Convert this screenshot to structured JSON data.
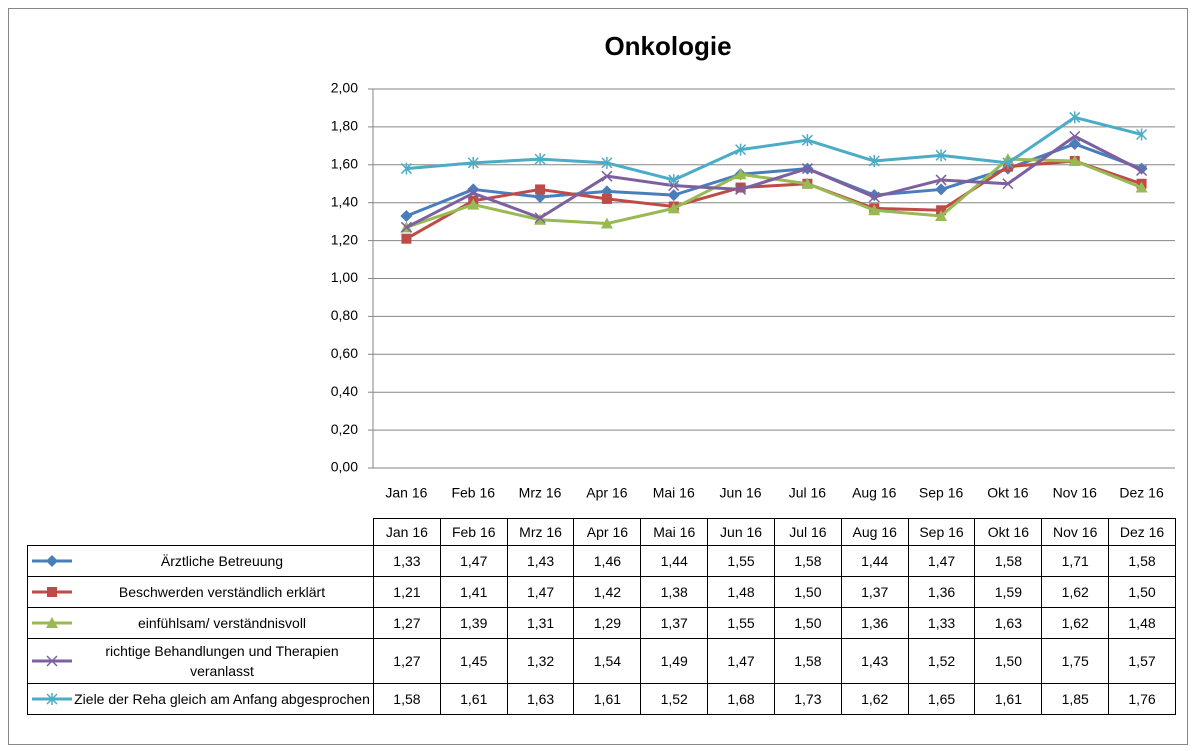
{
  "chart_data": {
    "type": "line",
    "title": "Onkologie",
    "categories": [
      "Jan 16",
      "Feb 16",
      "Mrz 16",
      "Apr 16",
      "Mai 16",
      "Jun 16",
      "Jul 16",
      "Aug 16",
      "Sep 16",
      "Okt 16",
      "Nov 16",
      "Dez 16"
    ],
    "ylim": [
      0,
      2
    ],
    "yticks": [
      {
        "value": 0,
        "label": "0,00"
      },
      {
        "value": 0.2,
        "label": "0,20"
      },
      {
        "value": 0.4,
        "label": "0,40"
      },
      {
        "value": 0.6,
        "label": "0,60"
      },
      {
        "value": 0.8,
        "label": "0,80"
      },
      {
        "value": 1,
        "label": "1,00"
      },
      {
        "value": 1.2,
        "label": "1,20"
      },
      {
        "value": 1.4,
        "label": "1,40"
      },
      {
        "value": 1.6,
        "label": "1,60"
      },
      {
        "value": 1.8,
        "label": "1,80"
      },
      {
        "value": 2,
        "label": "2,00"
      }
    ],
    "grid": true,
    "series": [
      {
        "name": "Ärztliche Betreuung",
        "color": "#4a7ebb",
        "marker": "diamond",
        "values": [
          1.33,
          1.47,
          1.43,
          1.46,
          1.44,
          1.55,
          1.58,
          1.44,
          1.47,
          1.58,
          1.71,
          1.58
        ],
        "value_labels": [
          "1,33",
          "1,47",
          "1,43",
          "1,46",
          "1,44",
          "1,55",
          "1,58",
          "1,44",
          "1,47",
          "1,58",
          "1,71",
          "1,58"
        ]
      },
      {
        "name": "Beschwerden verständlich erklärt",
        "color": "#be4b48",
        "marker": "square",
        "values": [
          1.21,
          1.41,
          1.47,
          1.42,
          1.38,
          1.48,
          1.5,
          1.37,
          1.36,
          1.59,
          1.62,
          1.5
        ],
        "value_labels": [
          "1,21",
          "1,41",
          "1,47",
          "1,42",
          "1,38",
          "1,48",
          "1,50",
          "1,37",
          "1,36",
          "1,59",
          "1,62",
          "1,50"
        ]
      },
      {
        "name": "einfühlsam/ verständnisvoll",
        "color": "#98b954",
        "marker": "triangle",
        "values": [
          1.27,
          1.39,
          1.31,
          1.29,
          1.37,
          1.55,
          1.5,
          1.36,
          1.33,
          1.63,
          1.62,
          1.48
        ],
        "value_labels": [
          "1,27",
          "1,39",
          "1,31",
          "1,29",
          "1,37",
          "1,55",
          "1,50",
          "1,36",
          "1,33",
          "1,63",
          "1,62",
          "1,48"
        ]
      },
      {
        "name": "richtige Behandlungen und Therapien veranlasst",
        "color": "#7d60a0",
        "marker": "x",
        "values": [
          1.27,
          1.45,
          1.32,
          1.54,
          1.49,
          1.47,
          1.58,
          1.43,
          1.52,
          1.5,
          1.75,
          1.57
        ],
        "value_labels": [
          "1,27",
          "1,45",
          "1,32",
          "1,54",
          "1,49",
          "1,47",
          "1,58",
          "1,43",
          "1,52",
          "1,50",
          "1,75",
          "1,57"
        ]
      },
      {
        "name": "Ziele der Reha gleich am Anfang abgesprochen",
        "color": "#4bacc6",
        "marker": "star",
        "values": [
          1.58,
          1.61,
          1.63,
          1.61,
          1.52,
          1.68,
          1.73,
          1.62,
          1.65,
          1.61,
          1.85,
          1.76
        ],
        "value_labels": [
          "1,58",
          "1,61",
          "1,63",
          "1,61",
          "1,52",
          "1,68",
          "1,73",
          "1,62",
          "1,65",
          "1,61",
          "1,85",
          "1,76"
        ]
      }
    ]
  }
}
